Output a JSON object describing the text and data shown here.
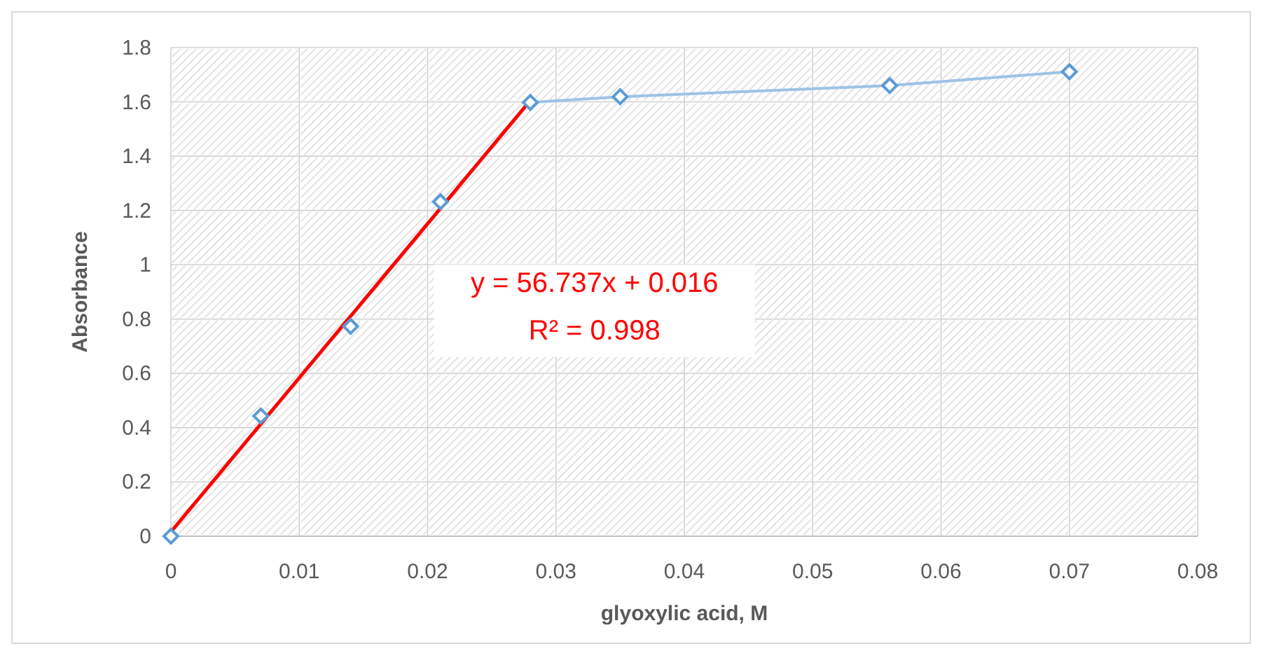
{
  "chart_data": {
    "type": "scatter",
    "xlabel": "glyoxylic acid, M",
    "ylabel": "Absorbance",
    "xlim": [
      0,
      0.08
    ],
    "xticks": [
      0,
      0.01,
      0.02,
      0.03,
      0.04,
      0.05,
      0.06,
      0.07,
      0.08
    ],
    "ylim": [
      0,
      1.8
    ],
    "yticks": [
      0,
      0.2,
      0.4,
      0.6,
      0.8,
      1,
      1.2,
      1.4,
      1.6,
      1.8
    ],
    "grid": true,
    "annotations": [
      "y = 56.737x + 0.016",
      "R² = 0.998"
    ],
    "series": [
      {
        "type": "line",
        "color": "#9dc3e6",
        "marker": "none",
        "line_style": "solid",
        "x": [
          0.028,
          0.035,
          0.056,
          0.07
        ],
        "values": [
          1.598,
          1.619,
          1.66,
          1.711
        ]
      },
      {
        "type": "line",
        "color": "#ff0000",
        "marker": "none",
        "line_style": "solid",
        "x": [
          0,
          0.028
        ],
        "values": [
          0.016,
          1.605
        ]
      },
      {
        "type": "scatter",
        "color": "#5b9bd5",
        "marker": "diamond",
        "x": [
          0,
          0.007,
          0.014,
          0.021,
          0.028,
          0.035,
          0.056,
          0.07
        ],
        "values": [
          0,
          0.443,
          0.773,
          1.232,
          1.598,
          1.619,
          1.66,
          1.711
        ]
      }
    ]
  }
}
